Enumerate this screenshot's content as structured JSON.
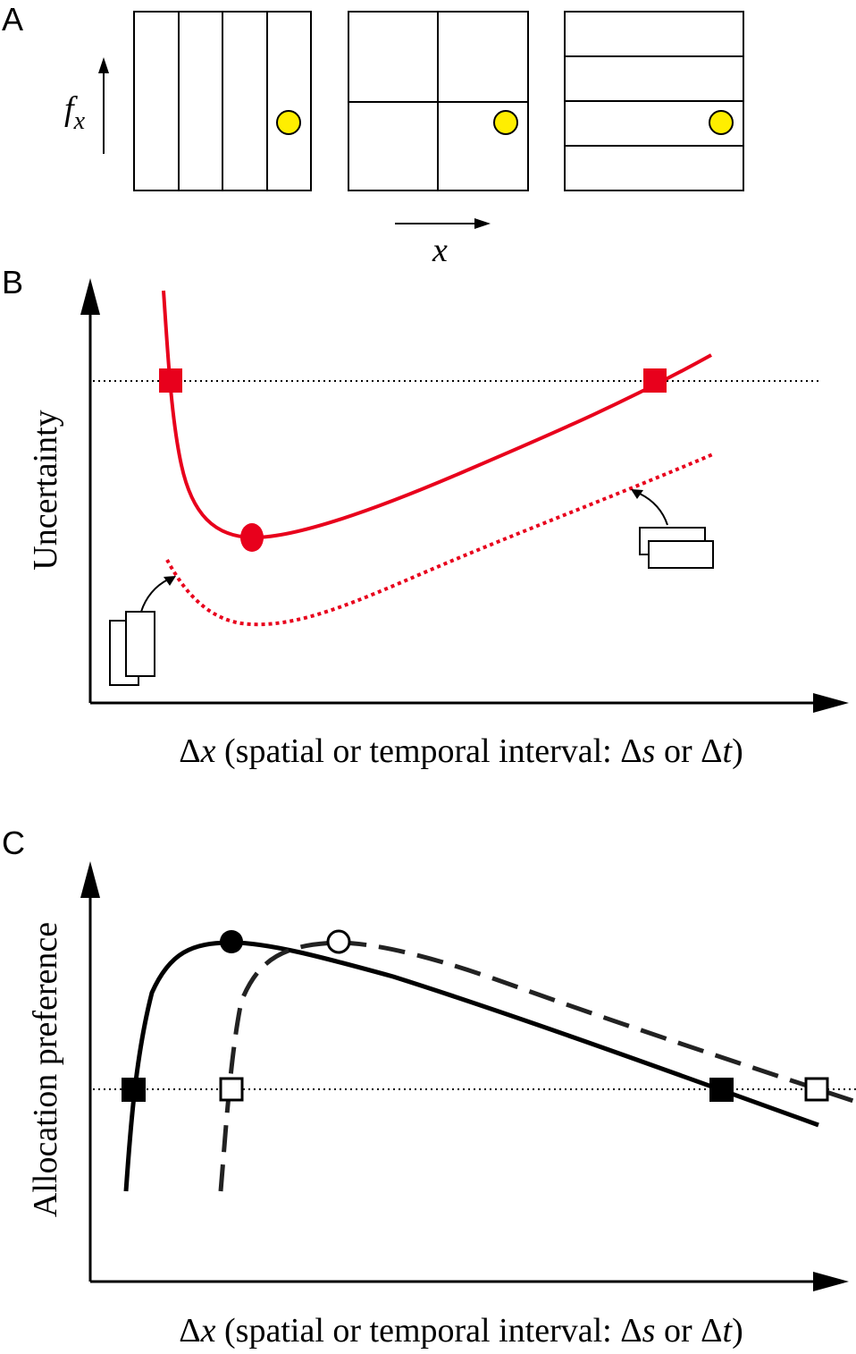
{
  "panel_a": {
    "label": "A",
    "y_axis_symbol": "f",
    "y_axis_subscript": "x",
    "x_axis_symbol": "x",
    "dot_color": "#ffee00"
  },
  "panel_b": {
    "label": "B",
    "y_axis_label": "Uncertainty",
    "x_axis_label": {
      "delta": "Δ",
      "var": "x",
      "text1": " (spatial or temporal interval: ",
      "delta_s": "Δ",
      "s": "s",
      "or": " or ",
      "delta_t": "Δ",
      "t": "t",
      "close": ")"
    },
    "curve_color": "#e8001c"
  },
  "panel_c": {
    "label": "C",
    "y_axis_label": "Allocation preference",
    "x_axis_label": {
      "delta": "Δ",
      "var": "x",
      "text1": " (spatial or temporal interval: ",
      "delta_s": "Δ",
      "s": "s",
      "or": " or ",
      "delta_t": "Δ",
      "t": "t",
      "close": ")"
    },
    "curve_color": "#000000",
    "dashed_color": "#333333"
  }
}
